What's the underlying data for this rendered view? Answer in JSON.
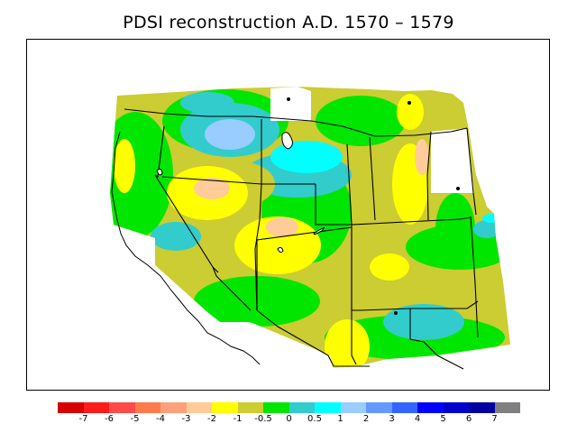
{
  "title": "PDSI reconstruction A.D. 1570 – 1579",
  "legend": {
    "colors": [
      "#d70000",
      "#ff1a1a",
      "#ff4a4a",
      "#ff7a4a",
      "#ffa07a",
      "#ffcc99",
      "#ffff00",
      "#cccc33",
      "#00e600",
      "#33cccc",
      "#00ffff",
      "#99ccff",
      "#6699ff",
      "#3366ff",
      "#0000ff",
      "#0000cc",
      "#0000a0",
      "#808080"
    ],
    "labels": [
      "-7",
      "-6",
      "-5",
      "-4",
      "-3",
      "-2",
      "-1",
      "-0.5",
      "0",
      "0.5",
      "1",
      "2",
      "3",
      "4",
      "5",
      "6",
      "7"
    ]
  }
}
